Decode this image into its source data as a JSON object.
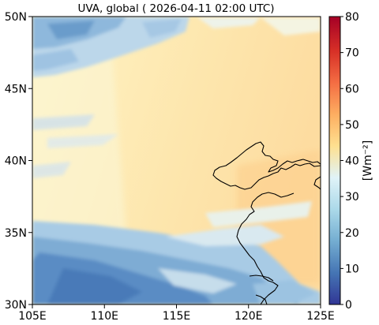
{
  "title": "UVA, global ( 2026-04-11 02:00 UTC)",
  "map": {
    "lat_ticks": [
      "30N",
      "35N",
      "40N",
      "45N",
      "50N"
    ],
    "lon_ticks": [
      "105E",
      "110E",
      "115E",
      "120E",
      "125E"
    ]
  },
  "colorbar": {
    "label": "[Wm⁻²]",
    "ticks": [
      "0",
      "10",
      "20",
      "30",
      "40",
      "50",
      "60",
      "70",
      "80"
    ],
    "colormap": "RdYlBu_r",
    "stops": [
      "#313695",
      "#4575b4",
      "#74add1",
      "#abd9e9",
      "#e0f3f8",
      "#fee090",
      "#fdae61",
      "#f46d43",
      "#d73027",
      "#a50026"
    ]
  }
}
